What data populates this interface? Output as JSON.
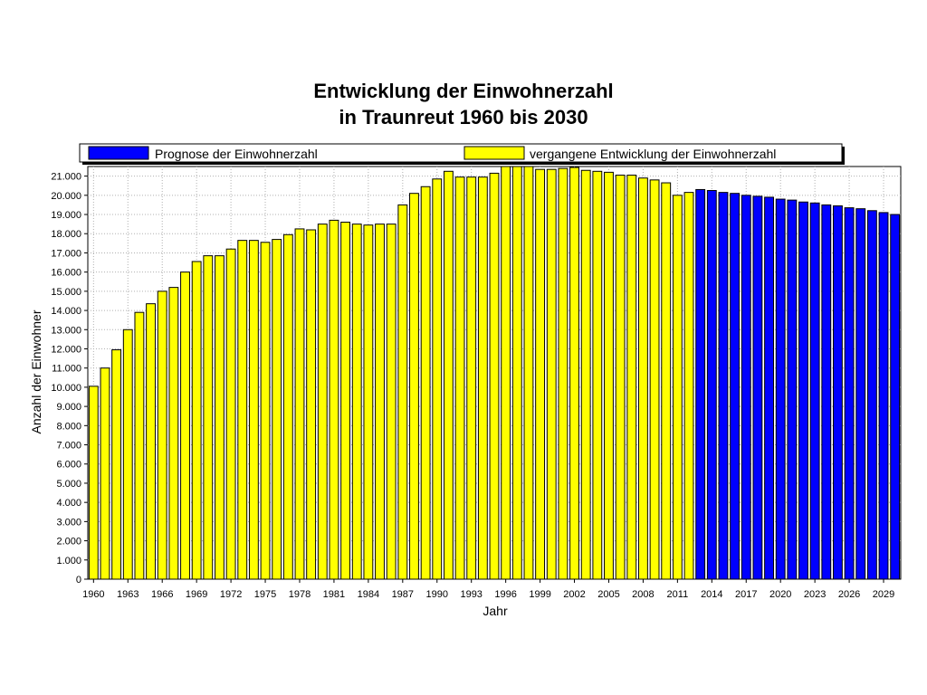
{
  "chart_data": {
    "type": "bar",
    "title": [
      "Entwicklung der Einwohnerzahl",
      "in Traunreut 1960 bis 2030"
    ],
    "xlabel": "Jahr",
    "ylabel": "Anzahl der Einwohner",
    "ylim": [
      0,
      21500
    ],
    "grid": true,
    "legend_position": "top",
    "y_ticks": [
      0,
      1000,
      2000,
      3000,
      4000,
      5000,
      6000,
      7000,
      8000,
      9000,
      10000,
      11000,
      12000,
      13000,
      14000,
      15000,
      16000,
      17000,
      18000,
      19000,
      20000,
      21000
    ],
    "y_tick_labels": [
      "0",
      "1.000",
      "2.000",
      "3.000",
      "4.000",
      "5.000",
      "6.000",
      "7.000",
      "8.000",
      "9.000",
      "10.000",
      "11.000",
      "12.000",
      "13.000",
      "14.000",
      "15.000",
      "16.000",
      "17.000",
      "18.000",
      "19.000",
      "20.000",
      "21.000"
    ],
    "x_tick_labels": [
      "1960",
      "1963",
      "1966",
      "1969",
      "1972",
      "1975",
      "1978",
      "1981",
      "1984",
      "1987",
      "1990",
      "1993",
      "1996",
      "1999",
      "2002",
      "2005",
      "2008",
      "2011",
      "2014",
      "2017",
      "2020",
      "2023",
      "2026",
      "2029"
    ],
    "legend": [
      {
        "label": "Prognose der Einwohnerzahl",
        "color": "#0000ff"
      },
      {
        "label": "vergangene Entwicklung der Einwohnerzahl",
        "color": "#ffff00"
      }
    ],
    "series": [
      {
        "name": "vergangene Entwicklung der Einwohnerzahl",
        "color": "#ffff00",
        "x": [
          1960,
          1961,
          1962,
          1963,
          1964,
          1965,
          1966,
          1967,
          1968,
          1969,
          1970,
          1971,
          1972,
          1973,
          1974,
          1975,
          1976,
          1977,
          1978,
          1979,
          1980,
          1981,
          1982,
          1983,
          1984,
          1985,
          1986,
          1987,
          1988,
          1989,
          1990,
          1991,
          1992,
          1993,
          1994,
          1995,
          1996,
          1997,
          1998,
          1999,
          2000,
          2001,
          2002,
          2003,
          2004,
          2005,
          2006,
          2007,
          2008,
          2009,
          2010,
          2011,
          2012
        ],
        "values": [
          10050,
          11000,
          11950,
          13000,
          13900,
          14350,
          15000,
          15200,
          16000,
          16550,
          16850,
          16850,
          17200,
          17650,
          17650,
          17550,
          17700,
          17950,
          18250,
          18200,
          18500,
          18700,
          18600,
          18500,
          18450,
          18500,
          18500,
          19500,
          20100,
          20450,
          20850,
          21250,
          20950,
          20950,
          20950,
          21150,
          21500,
          21500,
          21500,
          21350,
          21350,
          21400,
          21450,
          21300,
          21250,
          21200,
          21050,
          21050,
          20900,
          20800,
          20650,
          20000,
          20150
        ]
      },
      {
        "name": "Prognose der Einwohnerzahl",
        "color": "#0000ff",
        "x": [
          2013,
          2014,
          2015,
          2016,
          2017,
          2018,
          2019,
          2020,
          2021,
          2022,
          2023,
          2024,
          2025,
          2026,
          2027,
          2028,
          2029,
          2030
        ],
        "values": [
          20300,
          20250,
          20150,
          20100,
          20000,
          19950,
          19900,
          19800,
          19750,
          19650,
          19600,
          19500,
          19450,
          19350,
          19300,
          19200,
          19100,
          19000
        ]
      }
    ]
  }
}
